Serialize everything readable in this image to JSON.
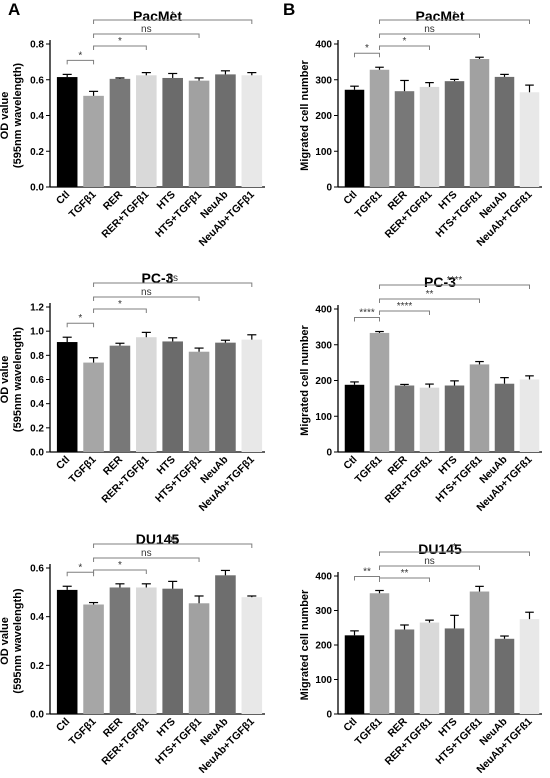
{
  "panel_labels": [
    "A",
    "B"
  ],
  "colors": {
    "bars": [
      "#000000",
      "#a6a6a6",
      "#787878",
      "#d9d9d9",
      "#6b6b6b",
      "#a1a1a1",
      "#6e6e6e",
      "#e8e8e8"
    ],
    "axis": "#000000",
    "bracket": "#7f7f7f"
  },
  "chart_data": [
    {
      "type": "bar",
      "panel": "A",
      "title": "PacMet",
      "ylabel": "OD value\n(595nm wavelength)",
      "categories": [
        "Ctl",
        "TGFβ1",
        "RER",
        "RER+TGFβ1",
        "HTS",
        "HTS+TGFβ1",
        "NeuAb",
        "NeuAb+TGFβ1"
      ],
      "values": [
        0.615,
        0.51,
        0.605,
        0.625,
        0.61,
        0.595,
        0.63,
        0.625
      ],
      "errors": [
        0.015,
        0.025,
        0.005,
        0.015,
        0.025,
        0.015,
        0.02,
        0.015
      ],
      "ylim": [
        0,
        0.8
      ],
      "yticks": [
        0.0,
        0.2,
        0.4,
        0.6,
        0.8
      ],
      "ytick_labels": [
        "0.0",
        "0.2",
        "0.4",
        "0.6",
        "0.8"
      ],
      "significance": [
        {
          "from": 0,
          "to": 1,
          "label": "*"
        },
        {
          "from": 1,
          "to": 3,
          "label": "*"
        },
        {
          "from": 1,
          "to": 5,
          "label": "ns"
        },
        {
          "from": 1,
          "to": 7,
          "label": "*"
        }
      ]
    },
    {
      "type": "bar",
      "panel": "B",
      "title": "PacMet",
      "ylabel": "Migrated cell number",
      "categories": [
        "Ctl",
        "TGFß1",
        "RER",
        "RER+TGFß1",
        "HTS",
        "HTS+TGFß1",
        "NeuAb",
        "NeuAb+TGFß1"
      ],
      "values": [
        272,
        328,
        268,
        280,
        296,
        358,
        308,
        265
      ],
      "errors": [
        10,
        7,
        30,
        12,
        5,
        5,
        7,
        20
      ],
      "ylim": [
        0,
        400
      ],
      "yticks": [
        0,
        100,
        200,
        300,
        400
      ],
      "ytick_labels": [
        "0",
        "100",
        "200",
        "300",
        "400"
      ],
      "significance": [
        {
          "from": 0,
          "to": 1,
          "label": "*"
        },
        {
          "from": 1,
          "to": 3,
          "label": "*"
        },
        {
          "from": 1,
          "to": 5,
          "label": "ns"
        },
        {
          "from": 1,
          "to": 7,
          "label": "*"
        }
      ]
    },
    {
      "type": "bar",
      "panel": "A",
      "title": "PC-3",
      "ylabel": "OD value\n(595nm wavelength)",
      "categories": [
        "Ctl",
        "TGFβ1",
        "RER",
        "RER+TGFβ1",
        "HTS",
        "HTS+TGFβ1",
        "NeuAb",
        "NeuAb+TGFβ1"
      ],
      "values": [
        0.91,
        0.74,
        0.88,
        0.95,
        0.915,
        0.83,
        0.905,
        0.93
      ],
      "errors": [
        0.04,
        0.04,
        0.02,
        0.04,
        0.03,
        0.03,
        0.02,
        0.04
      ],
      "ylim": [
        0,
        1.2
      ],
      "yticks": [
        0.0,
        0.2,
        0.4,
        0.6,
        0.8,
        1.0,
        1.2
      ],
      "ytick_labels": [
        "0.0",
        "0.2",
        "0.4",
        "0.6",
        "0.8",
        "1.0",
        "1.2"
      ],
      "significance": [
        {
          "from": 0,
          "to": 1,
          "label": "*"
        },
        {
          "from": 1,
          "to": 3,
          "label": "*"
        },
        {
          "from": 1,
          "to": 5,
          "label": "ns"
        },
        {
          "from": 1,
          "to": 7,
          "label": "ns"
        }
      ]
    },
    {
      "type": "bar",
      "panel": "B",
      "title": "PC-3",
      "ylabel": "Migrated cell number",
      "categories": [
        "Ctl",
        "TGFß1",
        "RER",
        "RER+TGFß1",
        "HTS",
        "HTS+TGFß1",
        "NeuAb",
        "NeuAb+TGFß1"
      ],
      "values": [
        188,
        333,
        186,
        180,
        186,
        245,
        191,
        203
      ],
      "errors": [
        8,
        4,
        3,
        10,
        13,
        8,
        17,
        10
      ],
      "ylim": [
        0,
        400
      ],
      "yticks": [
        0,
        100,
        200,
        300,
        400
      ],
      "ytick_labels": [
        "0",
        "100",
        "200",
        "300",
        "400"
      ],
      "significance": [
        {
          "from": 0,
          "to": 1,
          "label": "****"
        },
        {
          "from": 1,
          "to": 3,
          "label": "****"
        },
        {
          "from": 1,
          "to": 5,
          "label": "**"
        },
        {
          "from": 1,
          "to": 7,
          "label": "****"
        }
      ]
    },
    {
      "type": "bar",
      "panel": "A",
      "title": "DU145",
      "ylabel": "OD value\n(595nm wavelength)",
      "categories": [
        "Ctl",
        "TGFβ1",
        "RER",
        "RER+TGFβ1",
        "HTS",
        "HTS+TGFβ1",
        "NeuAb",
        "NeuAb+TGFβ1"
      ],
      "values": [
        0.51,
        0.45,
        0.52,
        0.52,
        0.515,
        0.455,
        0.57,
        0.48
      ],
      "errors": [
        0.015,
        0.008,
        0.015,
        0.015,
        0.03,
        0.03,
        0.02,
        0.005
      ],
      "ylim": [
        0,
        0.6
      ],
      "yticks": [
        0.0,
        0.2,
        0.4,
        0.6
      ],
      "ytick_labels": [
        "0.0",
        "0.2",
        "0.4",
        "0.6"
      ],
      "significance": [
        {
          "from": 0,
          "to": 1,
          "label": "*"
        },
        {
          "from": 1,
          "to": 3,
          "label": "*"
        },
        {
          "from": 1,
          "to": 5,
          "label": "ns"
        },
        {
          "from": 1,
          "to": 7,
          "label": "ns"
        }
      ]
    },
    {
      "type": "bar",
      "panel": "B",
      "title": "DU145",
      "ylabel": "Migrated cell number",
      "categories": [
        "Ctl",
        "TGFß1",
        "RER",
        "RER+TGFß1",
        "HTS",
        "HTS+TGFß1",
        "NeuAb",
        "NeuAb+TGFß1"
      ],
      "values": [
        228,
        350,
        245,
        265,
        248,
        355,
        218,
        275
      ],
      "errors": [
        13,
        8,
        13,
        7,
        38,
        15,
        8,
        20
      ],
      "ylim": [
        0,
        400
      ],
      "yticks": [
        0,
        100,
        200,
        300,
        400
      ],
      "ytick_labels": [
        "0",
        "100",
        "200",
        "300",
        "400"
      ],
      "significance": [
        {
          "from": 0,
          "to": 1,
          "label": "**"
        },
        {
          "from": 1,
          "to": 3,
          "label": "**"
        },
        {
          "from": 1,
          "to": 5,
          "label": "ns"
        },
        {
          "from": 1,
          "to": 7,
          "label": "*"
        }
      ]
    }
  ]
}
